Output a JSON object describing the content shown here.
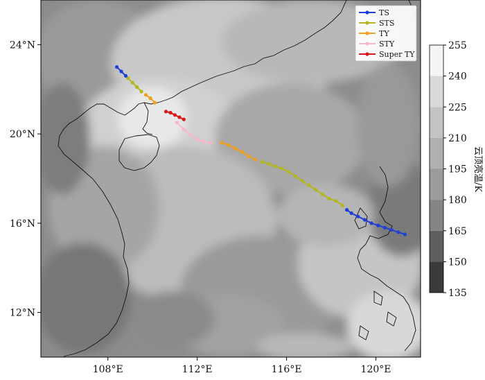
{
  "map": {
    "lon_range": [
      105,
      122
    ],
    "lat_range": [
      10,
      26
    ],
    "lon_ticks": [
      {
        "value": 108,
        "label": "108°E"
      },
      {
        "value": 112,
        "label": "112°E"
      },
      {
        "value": 116,
        "label": "116°E"
      },
      {
        "value": 120,
        "label": "120°E"
      }
    ],
    "lat_ticks": [
      {
        "value": 24,
        "label": "24°N"
      },
      {
        "value": 20,
        "label": "20°N"
      },
      {
        "value": 16,
        "label": "16°N"
      },
      {
        "value": 12,
        "label": "12°N"
      }
    ]
  },
  "legend": {
    "items": [
      {
        "label": "TS",
        "color": "#1f3fd6"
      },
      {
        "label": "STS",
        "color": "#b5b520"
      },
      {
        "label": "TY",
        "color": "#f0a020"
      },
      {
        "label": "STY",
        "color": "#f5b8c8"
      },
      {
        "label": "Super TY",
        "color": "#d81818"
      }
    ]
  },
  "colorbar": {
    "label": "云顶亮温/K",
    "ticks": [
      "255",
      "240",
      "225",
      "210",
      "195",
      "180",
      "165",
      "150",
      "135"
    ],
    "colors": [
      "#f5f5f5",
      "#dadada",
      "#c3c3c3",
      "#b0b0b0",
      "#9b9b9b",
      "#858585",
      "#5f5f5f",
      "#3a3a3a",
      "#161616"
    ]
  },
  "track": {
    "TS_east": [
      [
        121.3,
        15.5
      ],
      [
        121.0,
        15.6
      ],
      [
        120.7,
        15.7
      ],
      [
        120.4,
        15.8
      ],
      [
        120.1,
        15.9
      ],
      [
        119.8,
        16.0
      ],
      [
        119.5,
        16.15
      ],
      [
        119.2,
        16.3
      ],
      [
        118.9,
        16.45
      ],
      [
        118.7,
        16.6
      ]
    ],
    "STS_mid": [
      [
        118.5,
        16.8
      ],
      [
        118.2,
        17.0
      ],
      [
        117.9,
        17.1
      ],
      [
        117.6,
        17.3
      ],
      [
        117.3,
        17.5
      ],
      [
        117.0,
        17.7
      ],
      [
        116.7,
        17.9
      ],
      [
        116.4,
        18.1
      ],
      [
        116.1,
        18.3
      ],
      [
        115.8,
        18.45
      ],
      [
        115.5,
        18.55
      ],
      [
        115.2,
        18.65
      ],
      [
        114.9,
        18.75
      ]
    ],
    "TY_mid": [
      [
        114.6,
        18.85
      ],
      [
        114.3,
        19.0
      ],
      [
        114.0,
        19.2
      ],
      [
        113.7,
        19.35
      ],
      [
        113.4,
        19.5
      ],
      [
        113.1,
        19.6
      ]
    ],
    "STY": [
      [
        112.6,
        19.6
      ],
      [
        112.3,
        19.65
      ],
      [
        112.0,
        19.75
      ],
      [
        111.7,
        19.95
      ],
      [
        111.4,
        20.2
      ],
      [
        111.1,
        20.5
      ]
    ],
    "SuperTY": [
      [
        110.6,
        21.0
      ],
      [
        110.8,
        20.95
      ],
      [
        111.0,
        20.85
      ],
      [
        111.2,
        20.75
      ],
      [
        111.4,
        20.65
      ]
    ],
    "TY_west": [
      [
        110.1,
        21.4
      ],
      [
        109.9,
        21.6
      ],
      [
        109.7,
        21.75
      ]
    ],
    "STS_west": [
      [
        109.5,
        21.9
      ],
      [
        109.3,
        22.1
      ],
      [
        109.1,
        22.3
      ],
      [
        108.9,
        22.5
      ]
    ],
    "TS_west": [
      [
        108.8,
        22.6
      ],
      [
        108.6,
        22.8
      ],
      [
        108.4,
        23.0
      ]
    ]
  }
}
